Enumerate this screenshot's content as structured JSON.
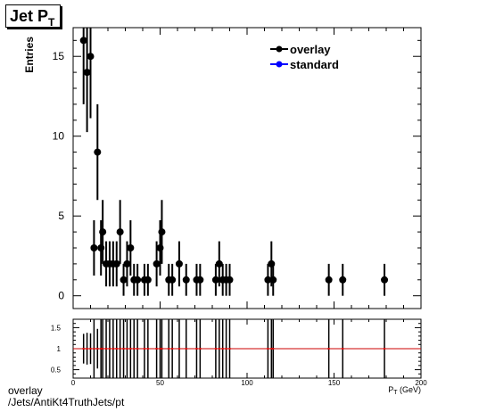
{
  "title": {
    "main": "Jet P",
    "sub": "T"
  },
  "caption": {
    "line1": "overlay",
    "line2": "/Jets/AntiKt4TruthJets/pt"
  },
  "colors": {
    "overlay": "#000000",
    "standard": "#0000ff",
    "ratio_line": "#cc0000"
  },
  "chart_data": [
    {
      "type": "scatter",
      "ylabel": "Entries",
      "xlim": [
        0,
        200
      ],
      "ylim": [
        -0.8,
        16.8
      ],
      "yticks": [
        0,
        5,
        10,
        15
      ],
      "legend": {
        "placement": "top-right",
        "entries": [
          "overlay",
          "standard"
        ]
      },
      "series": [
        {
          "name": "overlay",
          "x": [
            6,
            8,
            10,
            12,
            14,
            16,
            17,
            19,
            21,
            23,
            25,
            27,
            29,
            31,
            33,
            35,
            37,
            41,
            43,
            48,
            50,
            51,
            55,
            57,
            61,
            65,
            71,
            73,
            82,
            84,
            86,
            88,
            90,
            112,
            114,
            115,
            147,
            155,
            179
          ],
          "y": [
            16,
            14,
            15,
            3,
            9,
            3,
            4,
            2,
            2,
            2,
            2,
            4,
            1,
            2,
            3,
            1,
            1,
            1,
            1,
            2,
            3,
            4,
            1,
            1,
            2,
            1,
            1,
            1,
            1,
            2,
            1,
            1,
            1,
            1,
            2,
            1,
            1,
            1,
            1
          ]
        },
        {
          "name": "standard",
          "x": [],
          "y": []
        }
      ]
    },
    {
      "type": "scatter",
      "xlabel": "P_T (GeV)",
      "xlim": [
        0,
        200
      ],
      "ylim": [
        0.3,
        1.7
      ],
      "yticks": [
        0.5,
        1,
        1.5
      ],
      "xticks": [
        0,
        50,
        100,
        150,
        200
      ],
      "reference_line": 1,
      "series": [
        {
          "name": "ratio",
          "x": [
            6,
            8,
            10,
            12,
            14,
            16,
            17,
            19,
            21,
            23,
            25,
            27,
            29,
            31,
            33,
            35,
            37,
            41,
            43,
            48,
            50,
            51,
            55,
            57,
            61,
            65,
            71,
            73,
            82,
            84,
            86,
            88,
            90,
            112,
            114,
            115,
            147,
            155,
            179
          ],
          "y": [
            1,
            1,
            1,
            1,
            1,
            1,
            1,
            1,
            1,
            1,
            1,
            1,
            1,
            1,
            1,
            1,
            1,
            1,
            1,
            1,
            1,
            1,
            1,
            1,
            1,
            1,
            1,
            1,
            1,
            1,
            1,
            1,
            1,
            1,
            1,
            1,
            1,
            1,
            1
          ]
        }
      ]
    }
  ]
}
